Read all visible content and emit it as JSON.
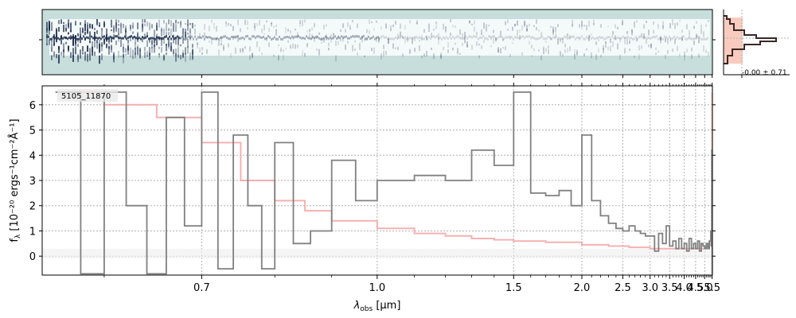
{
  "chart_data": {
    "type": "line",
    "id_label": "5105_11870",
    "xlabel_main": "λ",
    "xlabel_sub": "obs",
    "xlabel_unit": " [μm]",
    "ylabel_main": "f",
    "ylabel_sub": "λ",
    "ylabel_unit": " [10⁻²⁰ ergs⁻¹cm⁻²Å⁻¹]",
    "xlim": [
      0.55,
      5.52
    ],
    "ylim": [
      -0.75,
      6.75
    ],
    "x_scale": "reciprocal",
    "x_ticks": [
      {
        "v": 0.7,
        "label": "0.7"
      },
      {
        "v": 1.0,
        "label": "1.0"
      },
      {
        "v": 1.5,
        "label": "1.5"
      },
      {
        "v": 2.0,
        "label": "2.0"
      },
      {
        "v": 2.5,
        "label": "2.5"
      },
      {
        "v": 3.0,
        "label": "3.0"
      },
      {
        "v": 3.5,
        "label": "3.5"
      },
      {
        "v": 4.0,
        "label": "4.0"
      },
      {
        "v": 4.5,
        "label": "4.5"
      },
      {
        "v": 5.0,
        "label": "5.0"
      },
      {
        "v": 5.5,
        "label": "5.5"
      }
    ],
    "y_ticks": [
      {
        "v": 0,
        "label": "0"
      },
      {
        "v": 1,
        "label": "1"
      },
      {
        "v": 2,
        "label": "2"
      },
      {
        "v": 3,
        "label": "3"
      },
      {
        "v": 4,
        "label": "4"
      },
      {
        "v": 5,
        "label": "5"
      },
      {
        "v": 6,
        "label": "6"
      }
    ],
    "grid": true,
    "series": [
      {
        "role": "flux",
        "style": "steps",
        "color": "#808080",
        "x": [
          0.56,
          0.58,
          0.6,
          0.62,
          0.64,
          0.66,
          0.68,
          0.7,
          0.72,
          0.74,
          0.76,
          0.78,
          0.8,
          0.83,
          0.86,
          0.9,
          0.95,
          1.0,
          1.1,
          1.2,
          1.3,
          1.4,
          1.5,
          1.6,
          1.7,
          1.8,
          1.9,
          2.0,
          2.1,
          2.2,
          2.3,
          2.4,
          2.5,
          2.6,
          2.7,
          2.8,
          2.9,
          3.0,
          3.1,
          3.2,
          3.3,
          3.4,
          3.5,
          3.6,
          3.7,
          3.8,
          3.9,
          4.0,
          4.1,
          4.2,
          4.3,
          4.4,
          4.5,
          4.6,
          4.7,
          4.8,
          4.9,
          5.0,
          5.1,
          5.2,
          5.3,
          5.4,
          5.45,
          5.48,
          5.5
        ],
        "y": [
          6.5,
          -0.7,
          6.5,
          2.0,
          -0.7,
          5.5,
          1.2,
          6.5,
          -0.5,
          4.8,
          2.0,
          -0.5,
          4.5,
          0.5,
          1.0,
          3.8,
          2.2,
          3.0,
          3.2,
          3.0,
          4.2,
          3.6,
          6.5,
          2.5,
          2.4,
          2.6,
          2.0,
          4.8,
          2.2,
          1.6,
          1.3,
          1.1,
          1.0,
          1.2,
          1.0,
          0.9,
          0.8,
          0.8,
          0.2,
          0.9,
          0.5,
          1.2,
          0.4,
          0.6,
          0.3,
          0.7,
          0.3,
          0.5,
          0.2,
          0.7,
          0.3,
          0.5,
          0.3,
          0.6,
          0.2,
          0.5,
          0.4,
          0.3,
          0.5,
          0.3,
          0.6,
          1.0,
          0.4,
          4.2,
          -0.7
        ]
      },
      {
        "role": "model",
        "style": "steps",
        "color": "#f08080",
        "x": [
          0.56,
          0.6,
          0.65,
          0.7,
          0.75,
          0.8,
          0.85,
          0.9,
          1.0,
          1.1,
          1.2,
          1.3,
          1.4,
          1.5,
          1.7,
          2.0,
          2.3,
          2.6,
          3.0,
          3.5,
          4.0,
          4.5,
          5.0,
          5.2,
          5.3,
          5.4,
          5.45,
          5.48,
          5.5
        ],
        "y": [
          6.5,
          6.0,
          5.5,
          4.5,
          3.0,
          2.2,
          1.8,
          1.4,
          1.1,
          0.9,
          0.8,
          0.7,
          0.65,
          0.6,
          0.55,
          0.45,
          0.4,
          0.35,
          0.3,
          0.3,
          0.3,
          0.3,
          0.35,
          0.4,
          0.45,
          0.6,
          0.9,
          2.0,
          6.5
        ]
      }
    ],
    "spectrum2d_colors": [
      "#c7dedc",
      "#1a2a4a"
    ],
    "profile_annotation": "-0.00 ± 0.71"
  }
}
